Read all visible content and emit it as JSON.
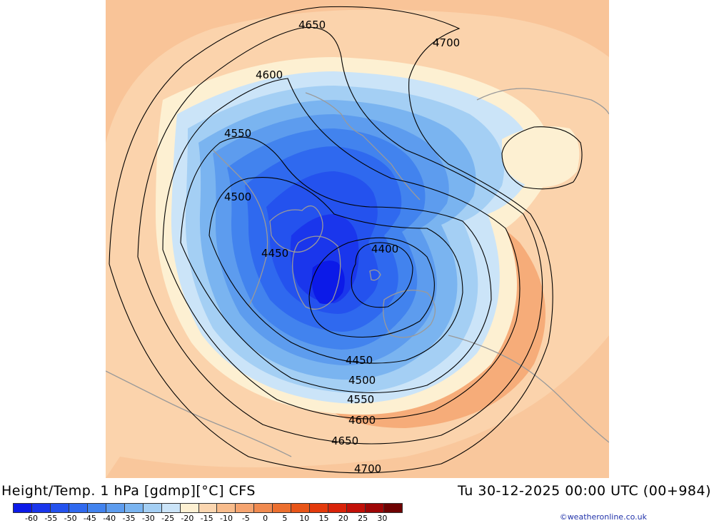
{
  "title": "Height/Temp. 1 hPa [gdmp][°C] CFS",
  "datetime": "Tu 30-12-2025 00:00 UTC (00+984)",
  "credit": "©weatheronline.co.uk",
  "contours": [
    {
      "level": "4400",
      "label": "4400"
    },
    {
      "level": "4450",
      "label": "4450"
    },
    {
      "level": "4500",
      "label": "4500"
    },
    {
      "level": "4550",
      "label": "4550"
    },
    {
      "level": "4600",
      "label": "4600"
    },
    {
      "level": "4650",
      "label": "4650"
    },
    {
      "level": "4700",
      "label": "4700"
    }
  ],
  "colorscale": {
    "colors": [
      "#0c1ae8",
      "#1a36ec",
      "#2452ee",
      "#2f69ef",
      "#4283ee",
      "#5d9cee",
      "#7ab4f0",
      "#a4cff4",
      "#cbe4f8",
      "#fdf0d2",
      "#fbd6b0",
      "#f8bc8c",
      "#f5a470",
      "#f08a50",
      "#ec6f2f",
      "#e85518",
      "#e33a0c",
      "#d92309",
      "#c21008",
      "#9e0606",
      "#6e0202"
    ],
    "ticks": [
      "-60",
      "-55",
      "-50",
      "-45",
      "-40",
      "-35",
      "-30",
      "-25",
      "-20",
      "-15",
      "-10",
      "-5",
      "0",
      "5",
      "10",
      "15",
      "20",
      "25",
      "30"
    ]
  }
}
